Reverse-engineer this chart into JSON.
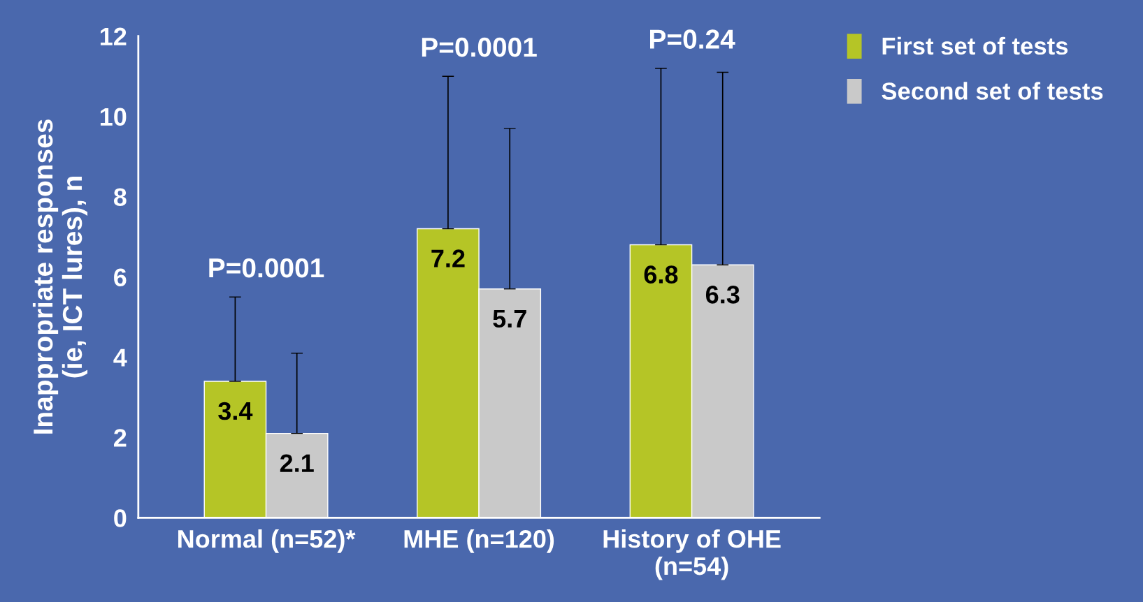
{
  "chart_data": {
    "type": "bar",
    "ylabel": "Inappropriate responses\n(ie, ICT lures), n",
    "categories": [
      "Normal (n=52)*",
      "MHE (n=120)",
      "History of OHE\n(n=54)"
    ],
    "series": [
      {
        "name": "First set of tests",
        "color": "#b5c526",
        "values": [
          3.4,
          7.2,
          6.8
        ],
        "errors": [
          [
            3.4,
            5.5
          ],
          [
            7.2,
            11.0
          ],
          [
            6.8,
            11.2
          ]
        ]
      },
      {
        "name": "Second set of tests",
        "color": "#c9c9c9",
        "values": [
          2.1,
          5.7,
          6.3
        ],
        "errors": [
          [
            2.1,
            4.1
          ],
          [
            5.7,
            9.7
          ],
          [
            6.3,
            11.1
          ]
        ]
      }
    ],
    "ylim": [
      0,
      12
    ],
    "yticks": [
      0,
      2,
      4,
      6,
      8,
      10,
      12
    ],
    "grid": false,
    "legend": "top right",
    "data_labels": true,
    "annotations": [
      "P=0.0001",
      "P=0.0001",
      "P=0.24"
    ]
  }
}
